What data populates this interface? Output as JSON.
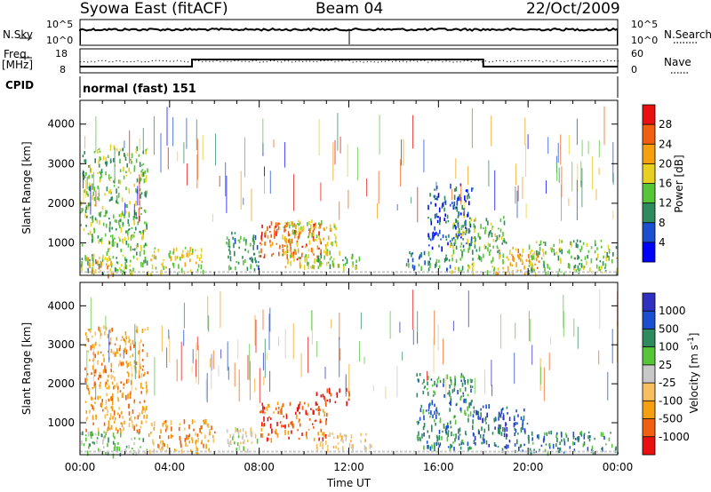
{
  "header": {
    "title": "Syowa East (fitACF)",
    "beam": "Beam 04",
    "date": "22/Oct/2009"
  },
  "panels": {
    "nsky": {
      "label": "N.Sky",
      "tick_top": "10^5",
      "tick_bottom": "10^0",
      "right_label": "N.Search",
      "right_tick_top": "10^5",
      "right_tick_bottom": "10^0"
    },
    "freq": {
      "label_line1": "Freq.",
      "label_line2": "[MHz]",
      "tick_top": "18",
      "tick_bottom": "8",
      "right_label": "Nave",
      "right_tick_top": "60",
      "right_tick_bottom": "0"
    },
    "cpid": {
      "label": "CPID",
      "value": "normal (fast) 151"
    }
  },
  "colors": {
    "power_scale": [
      "#0000ff",
      "#1c4fd0",
      "#2f8a5e",
      "#58c43a",
      "#e8d020",
      "#f4a010",
      "#f06010",
      "#e81010"
    ],
    "velocity_scale": [
      "#e81010",
      "#f06010",
      "#f4a010",
      "#f6c060",
      "#c8c8c8",
      "#58c43a",
      "#2f8a5e",
      "#1c4fd0",
      "#3030c0"
    ]
  },
  "chart_data": [
    {
      "type": "heatmap",
      "name": "power",
      "xlabel": "Time UT",
      "ylabel": "Slant Range [km]",
      "xlim": [
        0,
        24
      ],
      "ylim": [
        180,
        4600
      ],
      "yticks": [
        1000,
        2000,
        3000,
        4000
      ],
      "colorbar": {
        "label": "Power [dB]",
        "ticks": [
          4,
          8,
          12,
          16,
          20,
          24,
          28
        ],
        "range": [
          0,
          32
        ]
      },
      "regions": [
        {
          "t": [
            0.0,
            3.0
          ],
          "r": [
            250,
            3500
          ],
          "level": 3
        },
        {
          "t": [
            0.2,
            1.5
          ],
          "r": [
            200,
            700
          ],
          "level": 5
        },
        {
          "t": [
            3.0,
            5.5
          ],
          "r": [
            250,
            900
          ],
          "level": 4
        },
        {
          "t": [
            6.5,
            8.0
          ],
          "r": [
            300,
            1300
          ],
          "level": 2
        },
        {
          "t": [
            8.0,
            10.8
          ],
          "r": [
            600,
            1550
          ],
          "level": 6
        },
        {
          "t": [
            9.0,
            11.5
          ],
          "r": [
            400,
            1600
          ],
          "level": 4
        },
        {
          "t": [
            10.5,
            12.5
          ],
          "r": [
            400,
            800
          ],
          "level": 3
        },
        {
          "t": [
            14.5,
            16.5
          ],
          "r": [
            350,
            800
          ],
          "level": 2
        },
        {
          "t": [
            15.5,
            17.5
          ],
          "r": [
            900,
            2500
          ],
          "level": 1
        },
        {
          "t": [
            16.5,
            19.0
          ],
          "r": [
            300,
            1700
          ],
          "level": 3
        },
        {
          "t": [
            18.5,
            20.5
          ],
          "r": [
            250,
            900
          ],
          "level": 5
        },
        {
          "t": [
            20.0,
            24.0
          ],
          "r": [
            250,
            1100
          ],
          "level": 3
        }
      ]
    },
    {
      "type": "heatmap",
      "name": "velocity",
      "xlabel": "Time UT",
      "ylabel": "Slant Range [km]",
      "xlim": [
        0,
        24
      ],
      "ylim": [
        180,
        4600
      ],
      "yticks": [
        1000,
        2000,
        3000,
        4000
      ],
      "xticks": [
        "00:00",
        "04:00",
        "08:00",
        "12:00",
        "16:00",
        "20:00",
        "00:00"
      ],
      "colorbar": {
        "label": "Velocity [m s^-1]",
        "ticks": [
          1000,
          500,
          100,
          25,
          -25,
          -100,
          -500,
          -1000
        ]
      },
      "regions": [
        {
          "t": [
            0.0,
            3.0
          ],
          "r": [
            200,
            800
          ],
          "level": 5
        },
        {
          "t": [
            0.2,
            3.0
          ],
          "r": [
            800,
            3500
          ],
          "level": 2
        },
        {
          "t": [
            3.0,
            6.0
          ],
          "r": [
            300,
            1100
          ],
          "level": 2
        },
        {
          "t": [
            6.5,
            8.0
          ],
          "r": [
            300,
            900
          ],
          "level": 4
        },
        {
          "t": [
            8.0,
            11.0
          ],
          "r": [
            600,
            1550
          ],
          "level": 1
        },
        {
          "t": [
            10.5,
            12.0
          ],
          "r": [
            1500,
            1900
          ],
          "level": 0
        },
        {
          "t": [
            10.5,
            13.0
          ],
          "r": [
            350,
            800
          ],
          "level": 3
        },
        {
          "t": [
            15.0,
            17.5
          ],
          "r": [
            350,
            2300
          ],
          "level": 6
        },
        {
          "t": [
            17.5,
            20.0
          ],
          "r": [
            300,
            1500
          ],
          "level": 7
        },
        {
          "t": [
            20.0,
            24.0
          ],
          "r": [
            250,
            800
          ],
          "level": 6
        }
      ]
    }
  ]
}
